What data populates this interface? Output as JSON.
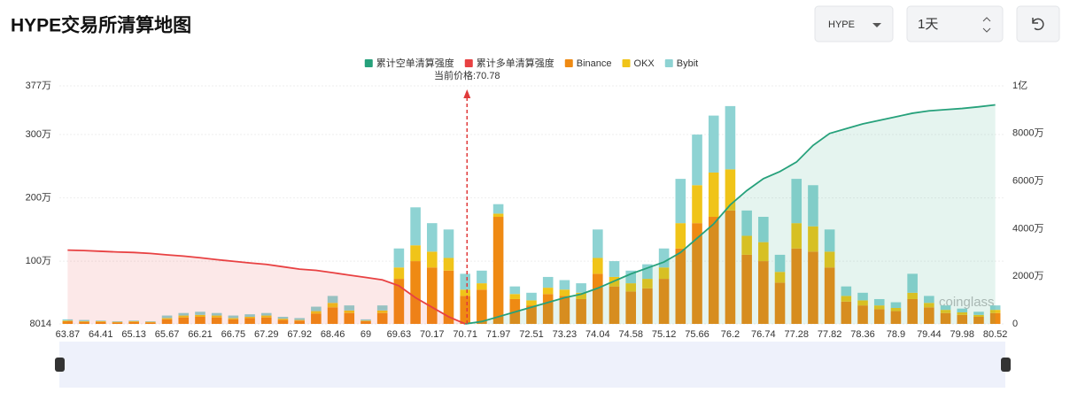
{
  "header": {
    "title": "HYPE交易所清算地图",
    "symbol": "HYPE",
    "period": "1天"
  },
  "watermark": "coinglass",
  "chart_data": {
    "type": "bar",
    "stacked": true,
    "annotation": {
      "value": 70.78,
      "label": "当前价格:70.78"
    },
    "categories": [
      "63.87",
      null,
      "64.41",
      null,
      "65.13",
      null,
      "65.67",
      null,
      "66.21",
      null,
      "66.75",
      null,
      "67.29",
      null,
      "67.92",
      null,
      "68.46",
      null,
      "69",
      null,
      "69.63",
      null,
      "70.17",
      null,
      "70.71",
      null,
      "71.97",
      null,
      "72.51",
      null,
      "73.23",
      null,
      "74.04",
      null,
      "74.58",
      null,
      "75.12",
      null,
      "75.66",
      null,
      "76.2",
      null,
      "76.74",
      null,
      "77.28",
      null,
      "77.82",
      null,
      "78.36",
      null,
      "78.9",
      null,
      "79.44",
      null,
      "79.98",
      null,
      "80.52"
    ],
    "ylim": [
      8014,
      3770000
    ],
    "yticks": [
      8014,
      {
        "value": 1000000,
        "label": "100万"
      },
      {
        "value": 2000000,
        "label": "200万"
      },
      {
        "value": 3000000,
        "label": "300万"
      },
      {
        "value": 3770000,
        "label": "377万"
      }
    ],
    "y2lim": [
      0,
      100000000
    ],
    "y2ticks": [
      0,
      {
        "value": 20000000,
        "label": "2000万"
      },
      {
        "value": 40000000,
        "label": "4000万"
      },
      {
        "value": 60000000,
        "label": "6000万"
      },
      {
        "value": 80000000,
        "label": "8000万"
      },
      {
        "value": 100000000,
        "label": "1亿"
      }
    ],
    "grid": true,
    "series": [
      {
        "name": "累计空单清算强度",
        "color": "#26a17b",
        "axis": "y2",
        "values": [
          null,
          null,
          null,
          null,
          null,
          null,
          null,
          null,
          null,
          null,
          null,
          null,
          null,
          null,
          null,
          null,
          null,
          null,
          null,
          null,
          null,
          null,
          null,
          null,
          0,
          1000000,
          3000000,
          5000000,
          7000000,
          9000000,
          11000000,
          12500000,
          15000000,
          18000000,
          21000000,
          23500000,
          26000000,
          30000000,
          36000000,
          42000000,
          50000000,
          56000000,
          61000000,
          64000000,
          68000000,
          75000000,
          80000000,
          82000000,
          84000000,
          85500000,
          87000000,
          88500000,
          89500000,
          90000000,
          90500000,
          91200000,
          92000000
        ]
      },
      {
        "name": "累计多单清算强度",
        "color": "#e84142",
        "axis": "y2",
        "values": [
          31000000,
          30800000,
          30500000,
          30200000,
          30000000,
          29600000,
          29000000,
          28500000,
          27800000,
          27000000,
          26300000,
          25600000,
          25000000,
          24000000,
          23000000,
          22500000,
          21500000,
          20500000,
          19500000,
          18500000,
          16000000,
          11000000,
          7000000,
          3000000,
          0,
          null,
          null,
          null,
          null,
          null,
          null,
          null,
          null,
          null,
          null,
          null,
          null,
          null,
          null,
          null,
          null,
          null,
          null,
          null,
          null,
          null,
          null,
          null,
          null,
          null,
          null,
          null,
          null,
          null,
          null,
          null,
          null
        ]
      },
      {
        "name": "Binance",
        "color": "#ef8a13",
        "values": [
          50000,
          40000,
          40000,
          30000,
          40000,
          30000,
          80000,
          110000,
          120000,
          110000,
          80000,
          100000,
          110000,
          70000,
          60000,
          170000,
          270000,
          180000,
          50000,
          180000,
          720000,
          1000000,
          900000,
          850000,
          450000,
          550000,
          1700000,
          400000,
          300000,
          480000,
          450000,
          400000,
          800000,
          600000,
          520000,
          570000,
          720000,
          1200000,
          1600000,
          1700000,
          1800000,
          1100000,
          1000000,
          660000,
          1200000,
          1150000,
          900000,
          360000,
          300000,
          240000,
          210000,
          400000,
          270000,
          180000,
          150000,
          120000,
          180000
        ]
      },
      {
        "name": "OKX",
        "color": "#f0c419",
        "values": [
          10000,
          10000,
          10000,
          10000,
          10000,
          10000,
          20000,
          30000,
          30000,
          30000,
          20000,
          20000,
          30000,
          20000,
          10000,
          40000,
          70000,
          40000,
          10000,
          40000,
          180000,
          250000,
          250000,
          200000,
          100000,
          100000,
          50000,
          80000,
          80000,
          100000,
          100000,
          100000,
          250000,
          150000,
          130000,
          150000,
          180000,
          400000,
          600000,
          700000,
          650000,
          300000,
          300000,
          170000,
          400000,
          400000,
          250000,
          90000,
          80000,
          60000,
          50000,
          100000,
          70000,
          50000,
          40000,
          30000,
          50000
        ]
      },
      {
        "name": "Bybit",
        "color": "#8ed3d3",
        "values": [
          20000,
          20000,
          10000,
          10000,
          10000,
          10000,
          40000,
          40000,
          50000,
          40000,
          40000,
          40000,
          40000,
          30000,
          30000,
          70000,
          110000,
          80000,
          20000,
          80000,
          300000,
          600000,
          450000,
          450000,
          250000,
          200000,
          150000,
          120000,
          120000,
          170000,
          150000,
          150000,
          450000,
          250000,
          200000,
          230000,
          300000,
          700000,
          800000,
          900000,
          1000000,
          400000,
          400000,
          270000,
          700000,
          650000,
          350000,
          150000,
          120000,
          100000,
          90000,
          300000,
          110000,
          70000,
          60000,
          50000,
          70000
        ]
      }
    ]
  }
}
